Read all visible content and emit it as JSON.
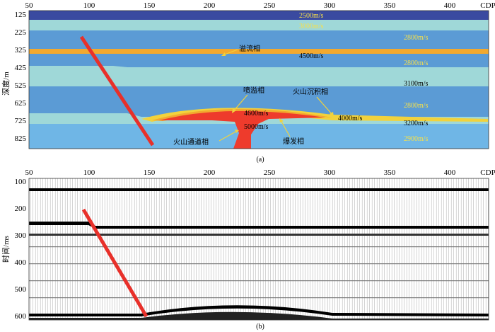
{
  "panel_a": {
    "x_ticks": [
      "50",
      "100",
      "150",
      "200",
      "250",
      "300",
      "350",
      "400"
    ],
    "x_unit": "CDP",
    "y_ticks": [
      "125",
      "225",
      "325",
      "425",
      "525",
      "625",
      "725",
      "825"
    ],
    "y_label": "深度/m",
    "caption": "(a)",
    "velocities": {
      "v2500": "2500m/s",
      "v3000": "3000m/s",
      "v2800_top": "2800m/s",
      "v4500": "4500m/s",
      "v2800_mid": "2800m/s",
      "v3100": "3100m/s",
      "v2800_low": "2800m/s",
      "v4600": "4600m/s",
      "v5000": "5000m/s",
      "v4000": "4000m/s",
      "v3200": "3200m/s",
      "v2900": "2900m/s"
    },
    "facies": {
      "overflow": "溢流相",
      "eruptive": "喷溢相",
      "sedimentary": "火山沉积相",
      "conduit": "火山通道相",
      "explosive": "爆发相"
    },
    "colors": {
      "deep_blue": "#3a4aa0",
      "light_teal": "#9fd8d8",
      "mid_blue": "#5b9bd5",
      "orange_layer": "#f2a92f",
      "red_body": "#ee3b2c",
      "bottom_blue": "#6fb6e6"
    }
  },
  "panel_b": {
    "x_ticks": [
      "50",
      "100",
      "150",
      "200",
      "250",
      "300",
      "350",
      "400"
    ],
    "x_unit": "CDP",
    "y_ticks": [
      "100",
      "200",
      "300",
      "400",
      "500",
      "600"
    ],
    "y_label": "时间/ms",
    "caption": "(b)"
  },
  "fault_color": "#e8302a"
}
